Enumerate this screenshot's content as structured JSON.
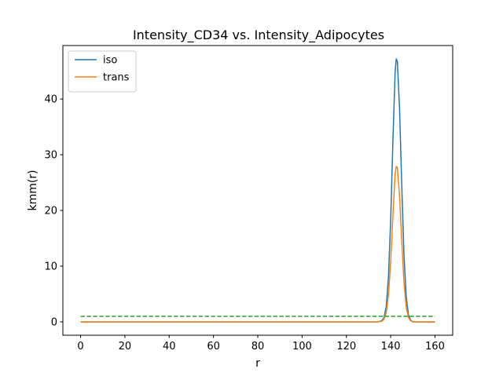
{
  "chart_data": {
    "type": "line",
    "title": "Intensity_CD34 vs. Intensity_Adipocytes",
    "xlabel": "r",
    "ylabel": "kmm(r)",
    "xlim": [
      -8,
      168
    ],
    "ylim": [
      -2.4,
      49.6
    ],
    "xticks": [
      0,
      20,
      40,
      60,
      80,
      100,
      120,
      140,
      160
    ],
    "yticks": [
      0,
      10,
      20,
      30,
      40
    ],
    "grid": false,
    "legend_position": "top-left",
    "series": [
      {
        "name": "iso",
        "color": "#1f77b4",
        "style": "solid",
        "x": [
          0,
          20,
          40,
          60,
          80,
          100,
          120,
          134,
          136,
          137,
          138,
          139,
          140,
          141,
          142,
          142.5,
          143,
          144,
          145,
          146,
          147,
          148,
          149,
          150,
          152,
          160
        ],
        "y": [
          0,
          0,
          0,
          0,
          0,
          0,
          0,
          0,
          0.2,
          0.8,
          2.8,
          8.1,
          18.3,
          32.4,
          44.8,
          47.2,
          46.8,
          38.4,
          24.5,
          12.0,
          4.6,
          1.3,
          0.3,
          0,
          0,
          0
        ]
      },
      {
        "name": "trans",
        "color": "#ff7f0e",
        "style": "solid",
        "x": [
          0,
          20,
          40,
          60,
          80,
          100,
          120,
          134,
          136,
          137,
          138,
          139,
          140,
          141,
          142,
          142.5,
          143,
          144,
          145,
          146,
          147,
          148,
          149,
          150,
          152,
          160
        ],
        "y": [
          0,
          0,
          0,
          0,
          0,
          0,
          0,
          0,
          0.1,
          0.5,
          1.7,
          4.8,
          10.8,
          19.1,
          26.5,
          27.9,
          27.7,
          22.7,
          14.5,
          7.1,
          2.7,
          0.8,
          0.2,
          0,
          0,
          0
        ]
      },
      {
        "color": "#2ca02c",
        "style": "dashed",
        "x": [
          0,
          160
        ],
        "y": [
          1,
          1
        ]
      }
    ]
  }
}
